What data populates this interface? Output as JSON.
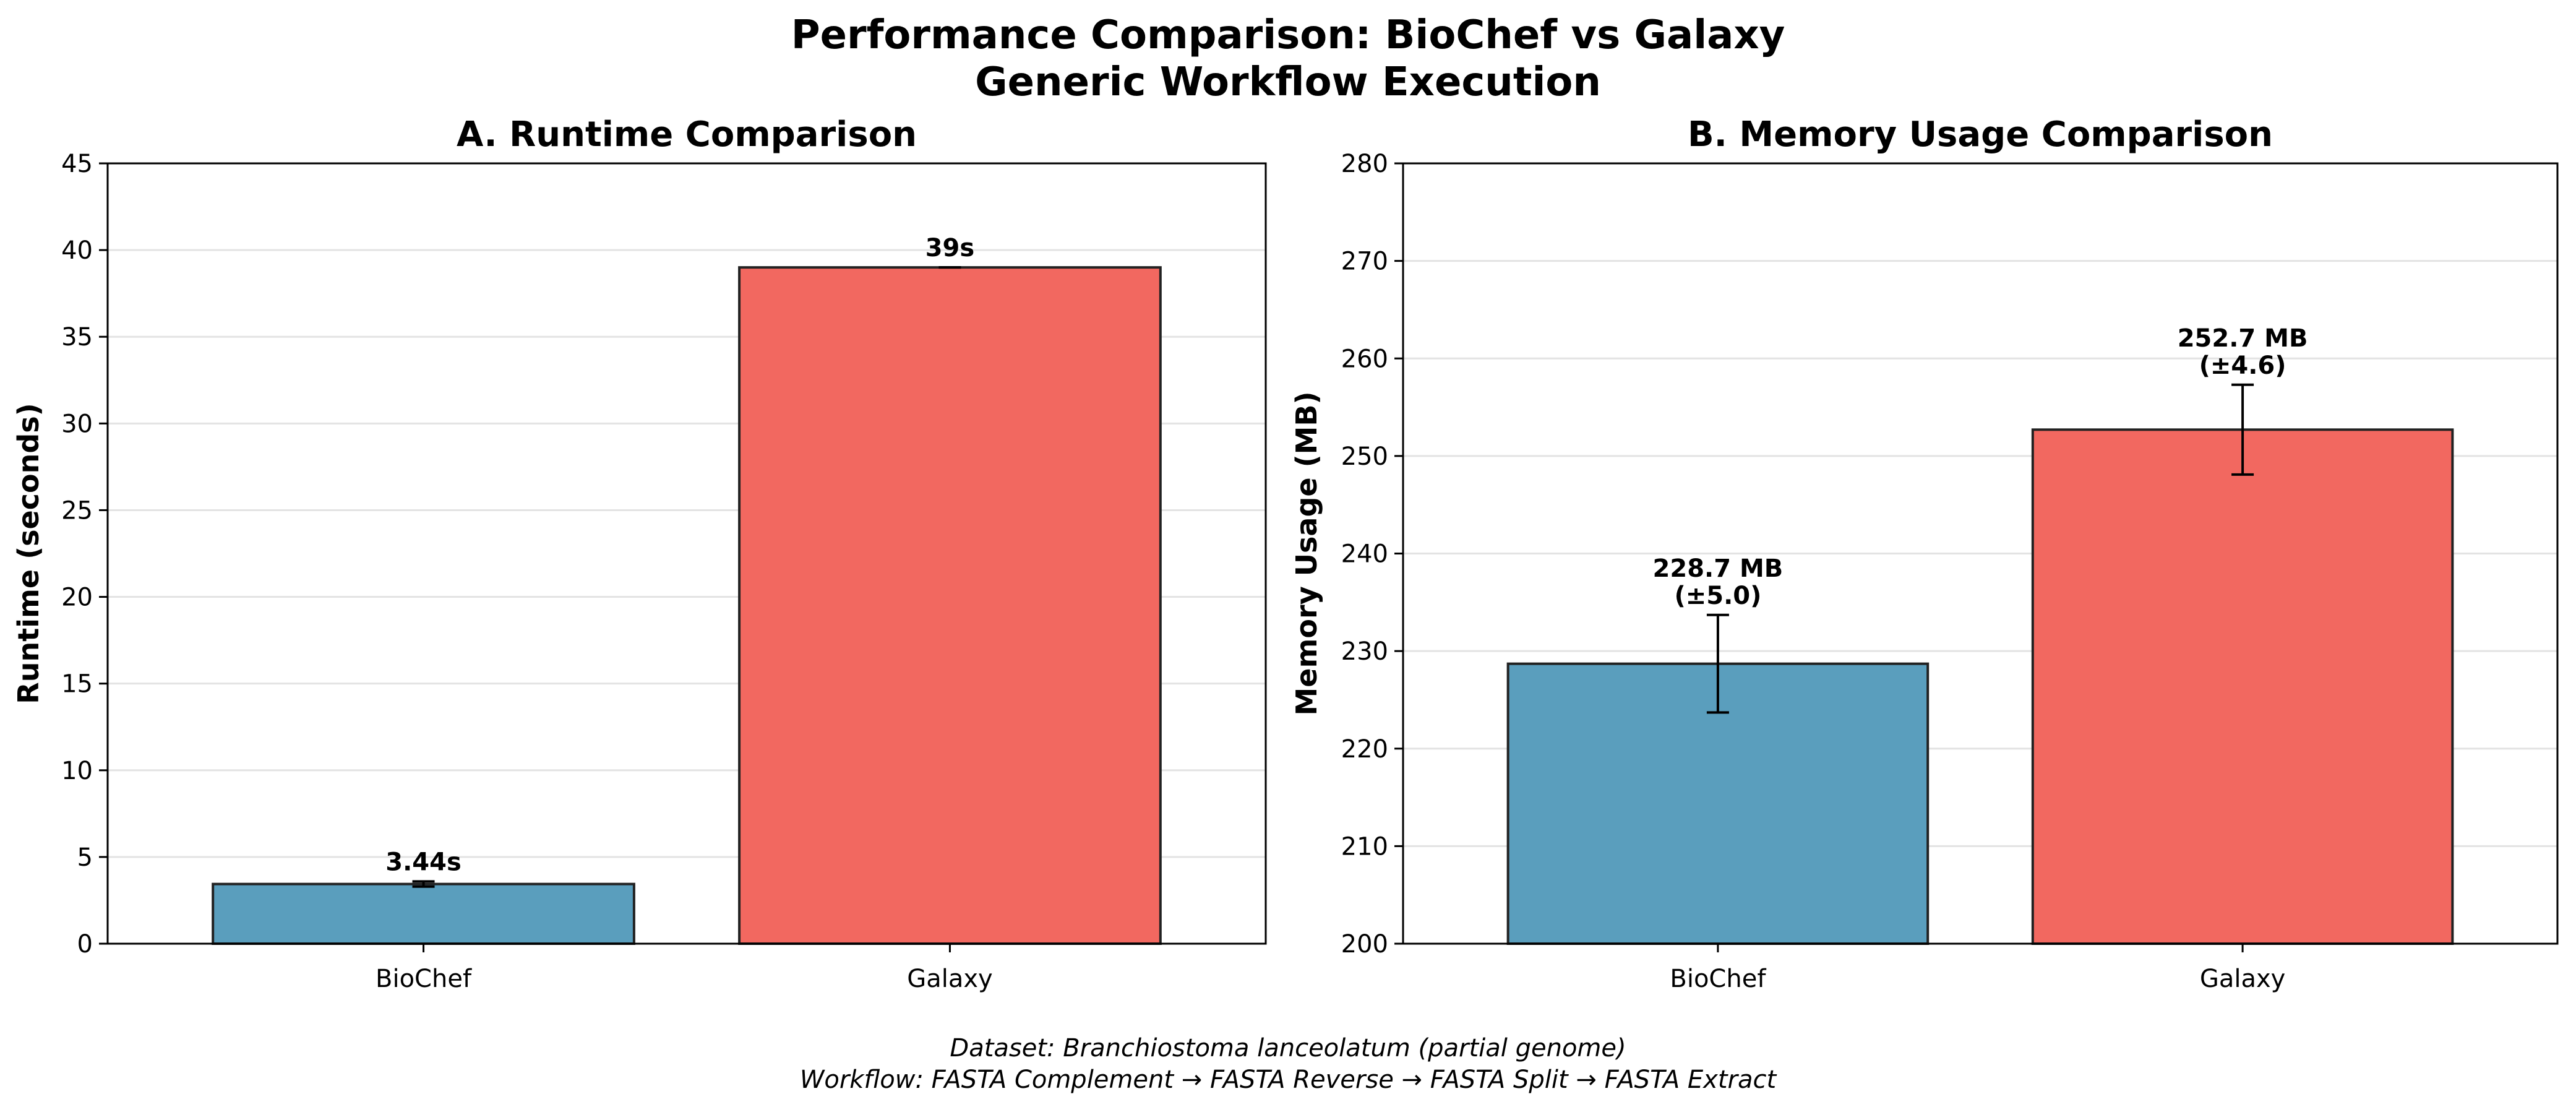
{
  "figure": {
    "title_line1": "Performance Comparison: BioChef vs Galaxy",
    "title_line2": "Generic Workflow Execution",
    "caption_line1": "Dataset: Branchiostoma lanceolatum (partial genome)",
    "caption_line2": "Workflow: FASTA Complement → FASTA Reverse → FASTA Split → FASTA Extract"
  },
  "chart_data": [
    {
      "type": "bar",
      "title": "A. Runtime Comparison",
      "xlabel": "",
      "ylabel": "Runtime (seconds)",
      "categories": [
        "BioChef",
        "Galaxy"
      ],
      "values": [
        3.44,
        39
      ],
      "errors": [
        0.15,
        0
      ],
      "data_labels": [
        [
          "3.44s"
        ],
        [
          "39s"
        ]
      ],
      "colors": [
        "#5a9ebd",
        "#f26860"
      ],
      "ylim": [
        0,
        45
      ],
      "yticks": [
        0,
        5,
        10,
        15,
        20,
        25,
        30,
        35,
        40,
        45
      ],
      "grid": "y"
    },
    {
      "type": "bar",
      "title": "B. Memory Usage Comparison",
      "xlabel": "",
      "ylabel": "Memory Usage (MB)",
      "categories": [
        "BioChef",
        "Galaxy"
      ],
      "values": [
        228.7,
        252.7
      ],
      "errors": [
        5.0,
        4.6
      ],
      "data_labels": [
        [
          "228.7 MB",
          "(±5.0)"
        ],
        [
          "252.7 MB",
          "(±4.6)"
        ]
      ],
      "colors": [
        "#5a9ebd",
        "#f26860"
      ],
      "ylim": [
        200,
        280
      ],
      "yticks": [
        200,
        210,
        220,
        230,
        240,
        250,
        260,
        270,
        280
      ],
      "grid": "y"
    }
  ]
}
